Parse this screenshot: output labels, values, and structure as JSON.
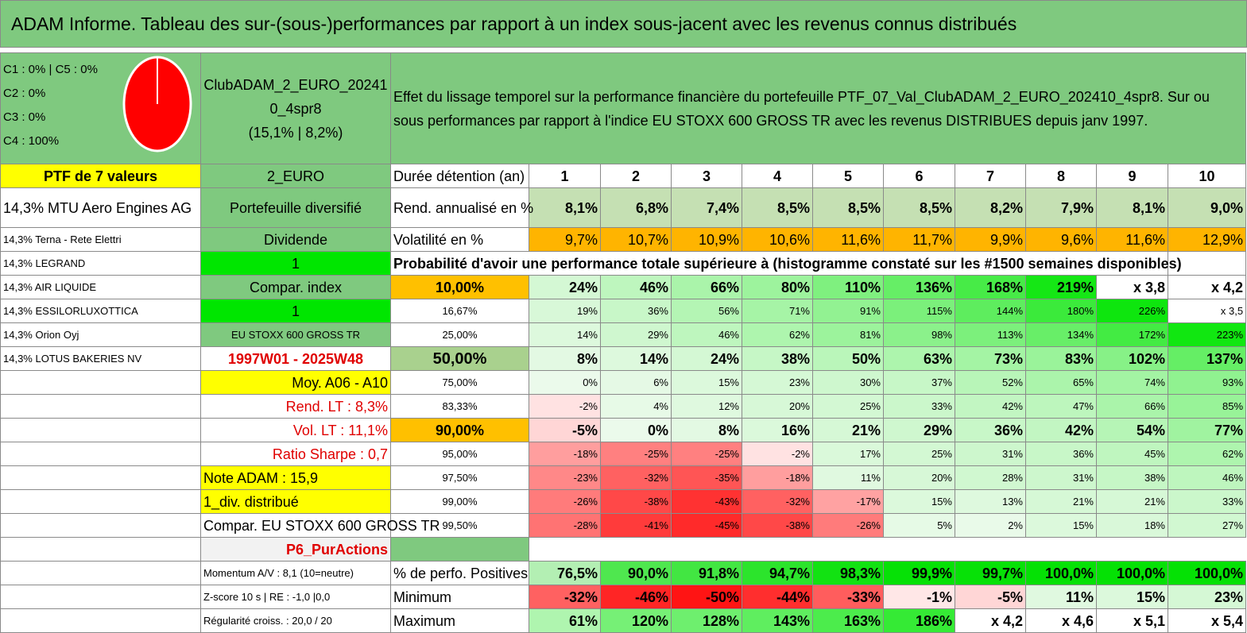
{
  "header": {
    "title": "ADAM Informe. Tableau des sur-(sous-)performances par rapport à un index sous-jacent avec les revenus connus distribués"
  },
  "classes": {
    "line1": "C1 : 0% | C5 : 0%",
    "line2": "C2 : 0%",
    "line3": "C3 : 0%",
    "line4": "C4 : 100%"
  },
  "pie": {
    "c4_percent": 100,
    "color": "#ff0000"
  },
  "portfolio": {
    "name_line1": "ClubADAM_2_EURO_20241",
    "name_line2": "0_4spr8",
    "name_line3": "(15,1% | 8,2%)"
  },
  "description": "Effet du lissage temporel sur la performance financière du portefeuille PTF_07_Val_ClubADAM_2_EURO_202410_4spr8. Sur ou sous performances par rapport à l'indice EU STOXX 600 GROSS TR avec les revenus DISTRIBUES depuis janv 1997.",
  "left": {
    "ptf_title": "PTF de 7 valeurs",
    "holdings": [
      "14,3% MTU Aero Engines AG",
      "14,3% Terna - Rete Elettri",
      "14,3% LEGRAND",
      "14,3% AIR LIQUIDE",
      "14,3% ESSILORLUXOTTICA",
      "14,3% Orion Oyj",
      "14,3% LOTUS BAKERIES NV"
    ]
  },
  "mid": {
    "code": "2_EURO",
    "type": "Portefeuille diversifié",
    "category": "Dividende",
    "val1": "1",
    "compar_label": "Compar. index",
    "val2": "1",
    "index_name": "EU STOXX 600 GROSS TR",
    "period": "1997W01 - 2025W48",
    "moy": "Moy. A06 - A10",
    "rend_lt": "Rend. LT : 8,3%",
    "vol_lt": "Vol. LT : 11,1%",
    "sharpe": "Ratio Sharpe : 0,7",
    "note": "Note ADAM : 15,9",
    "div": "1_div. distribué",
    "compar_full": "Compar. EU STOXX 600 GROSS TR",
    "p6": "P6_PurActions",
    "momentum": "Momentum A/V : 8,1 (10=neutre)",
    "zscore": "Z-score 10 s | RE : -1,0 |0,0",
    "regularite": "Régularité croiss. : 20,0 / 20"
  },
  "table": {
    "duration_label": "Durée détention (an)",
    "years": [
      "1",
      "2",
      "3",
      "4",
      "5",
      "6",
      "7",
      "8",
      "9",
      "10"
    ],
    "rend_label": "Rend. annualisé en %",
    "rend": [
      "8,1%",
      "6,8%",
      "7,4%",
      "8,5%",
      "8,5%",
      "8,5%",
      "8,2%",
      "7,9%",
      "8,1%",
      "9,0%"
    ],
    "vol_label": "Volatilité en %",
    "vol": [
      "9,7%",
      "10,7%",
      "10,9%",
      "10,6%",
      "11,6%",
      "11,7%",
      "9,9%",
      "9,6%",
      "11,6%",
      "12,9%"
    ],
    "prob_title": "Probabilité d'avoir une performance totale supérieure à (histogramme constaté sur les #1500 semaines disponibles)",
    "quantiles": [
      {
        "label": "10,00%",
        "values": [
          "24%",
          "46%",
          "66%",
          "80%",
          "110%",
          "136%",
          "168%",
          "219%",
          "x 3,8",
          "x 4,2"
        ]
      },
      {
        "label": "16,67%",
        "values": [
          "19%",
          "36%",
          "56%",
          "71%",
          "91%",
          "115%",
          "144%",
          "180%",
          "226%",
          "x 3,5"
        ]
      },
      {
        "label": "25,00%",
        "values": [
          "14%",
          "29%",
          "46%",
          "62%",
          "81%",
          "98%",
          "113%",
          "134%",
          "172%",
          "223%"
        ]
      },
      {
        "label": "50,00%",
        "values": [
          "8%",
          "14%",
          "24%",
          "38%",
          "50%",
          "63%",
          "73%",
          "83%",
          "102%",
          "137%"
        ]
      },
      {
        "label": "75,00%",
        "values": [
          "0%",
          "6%",
          "15%",
          "23%",
          "30%",
          "37%",
          "52%",
          "65%",
          "74%",
          "93%"
        ]
      },
      {
        "label": "83,33%",
        "values": [
          "-2%",
          "4%",
          "12%",
          "20%",
          "25%",
          "33%",
          "42%",
          "47%",
          "66%",
          "85%"
        ]
      },
      {
        "label": "90,00%",
        "values": [
          "-5%",
          "0%",
          "8%",
          "16%",
          "21%",
          "29%",
          "36%",
          "42%",
          "54%",
          "77%"
        ]
      },
      {
        "label": "95,00%",
        "values": [
          "-18%",
          "-25%",
          "-25%",
          "-2%",
          "17%",
          "25%",
          "31%",
          "36%",
          "45%",
          "62%"
        ]
      },
      {
        "label": "97,50%",
        "values": [
          "-23%",
          "-32%",
          "-35%",
          "-18%",
          "11%",
          "20%",
          "28%",
          "31%",
          "38%",
          "46%"
        ]
      },
      {
        "label": "99,00%",
        "values": [
          "-26%",
          "-38%",
          "-43%",
          "-32%",
          "-17%",
          "15%",
          "13%",
          "21%",
          "21%",
          "33%"
        ]
      },
      {
        "label": "99,50%",
        "values": [
          "-28%",
          "-41%",
          "-45%",
          "-38%",
          "-26%",
          "5%",
          "2%",
          "15%",
          "18%",
          "27%"
        ]
      }
    ],
    "pos_label": "% de perfo. Positives",
    "pos": [
      "76,5%",
      "90,0%",
      "91,8%",
      "94,7%",
      "98,3%",
      "99,9%",
      "99,7%",
      "100,0%",
      "100,0%",
      "100,0%"
    ],
    "min_label": "Minimum",
    "min": [
      "-32%",
      "-46%",
      "-50%",
      "-44%",
      "-33%",
      "-1%",
      "-5%",
      "11%",
      "15%",
      "23%"
    ],
    "max_label": "Maximum",
    "max": [
      "61%",
      "120%",
      "128%",
      "143%",
      "163%",
      "186%",
      "x 4,2",
      "x 4,6",
      "x 5,1",
      "x 5,4"
    ]
  }
}
